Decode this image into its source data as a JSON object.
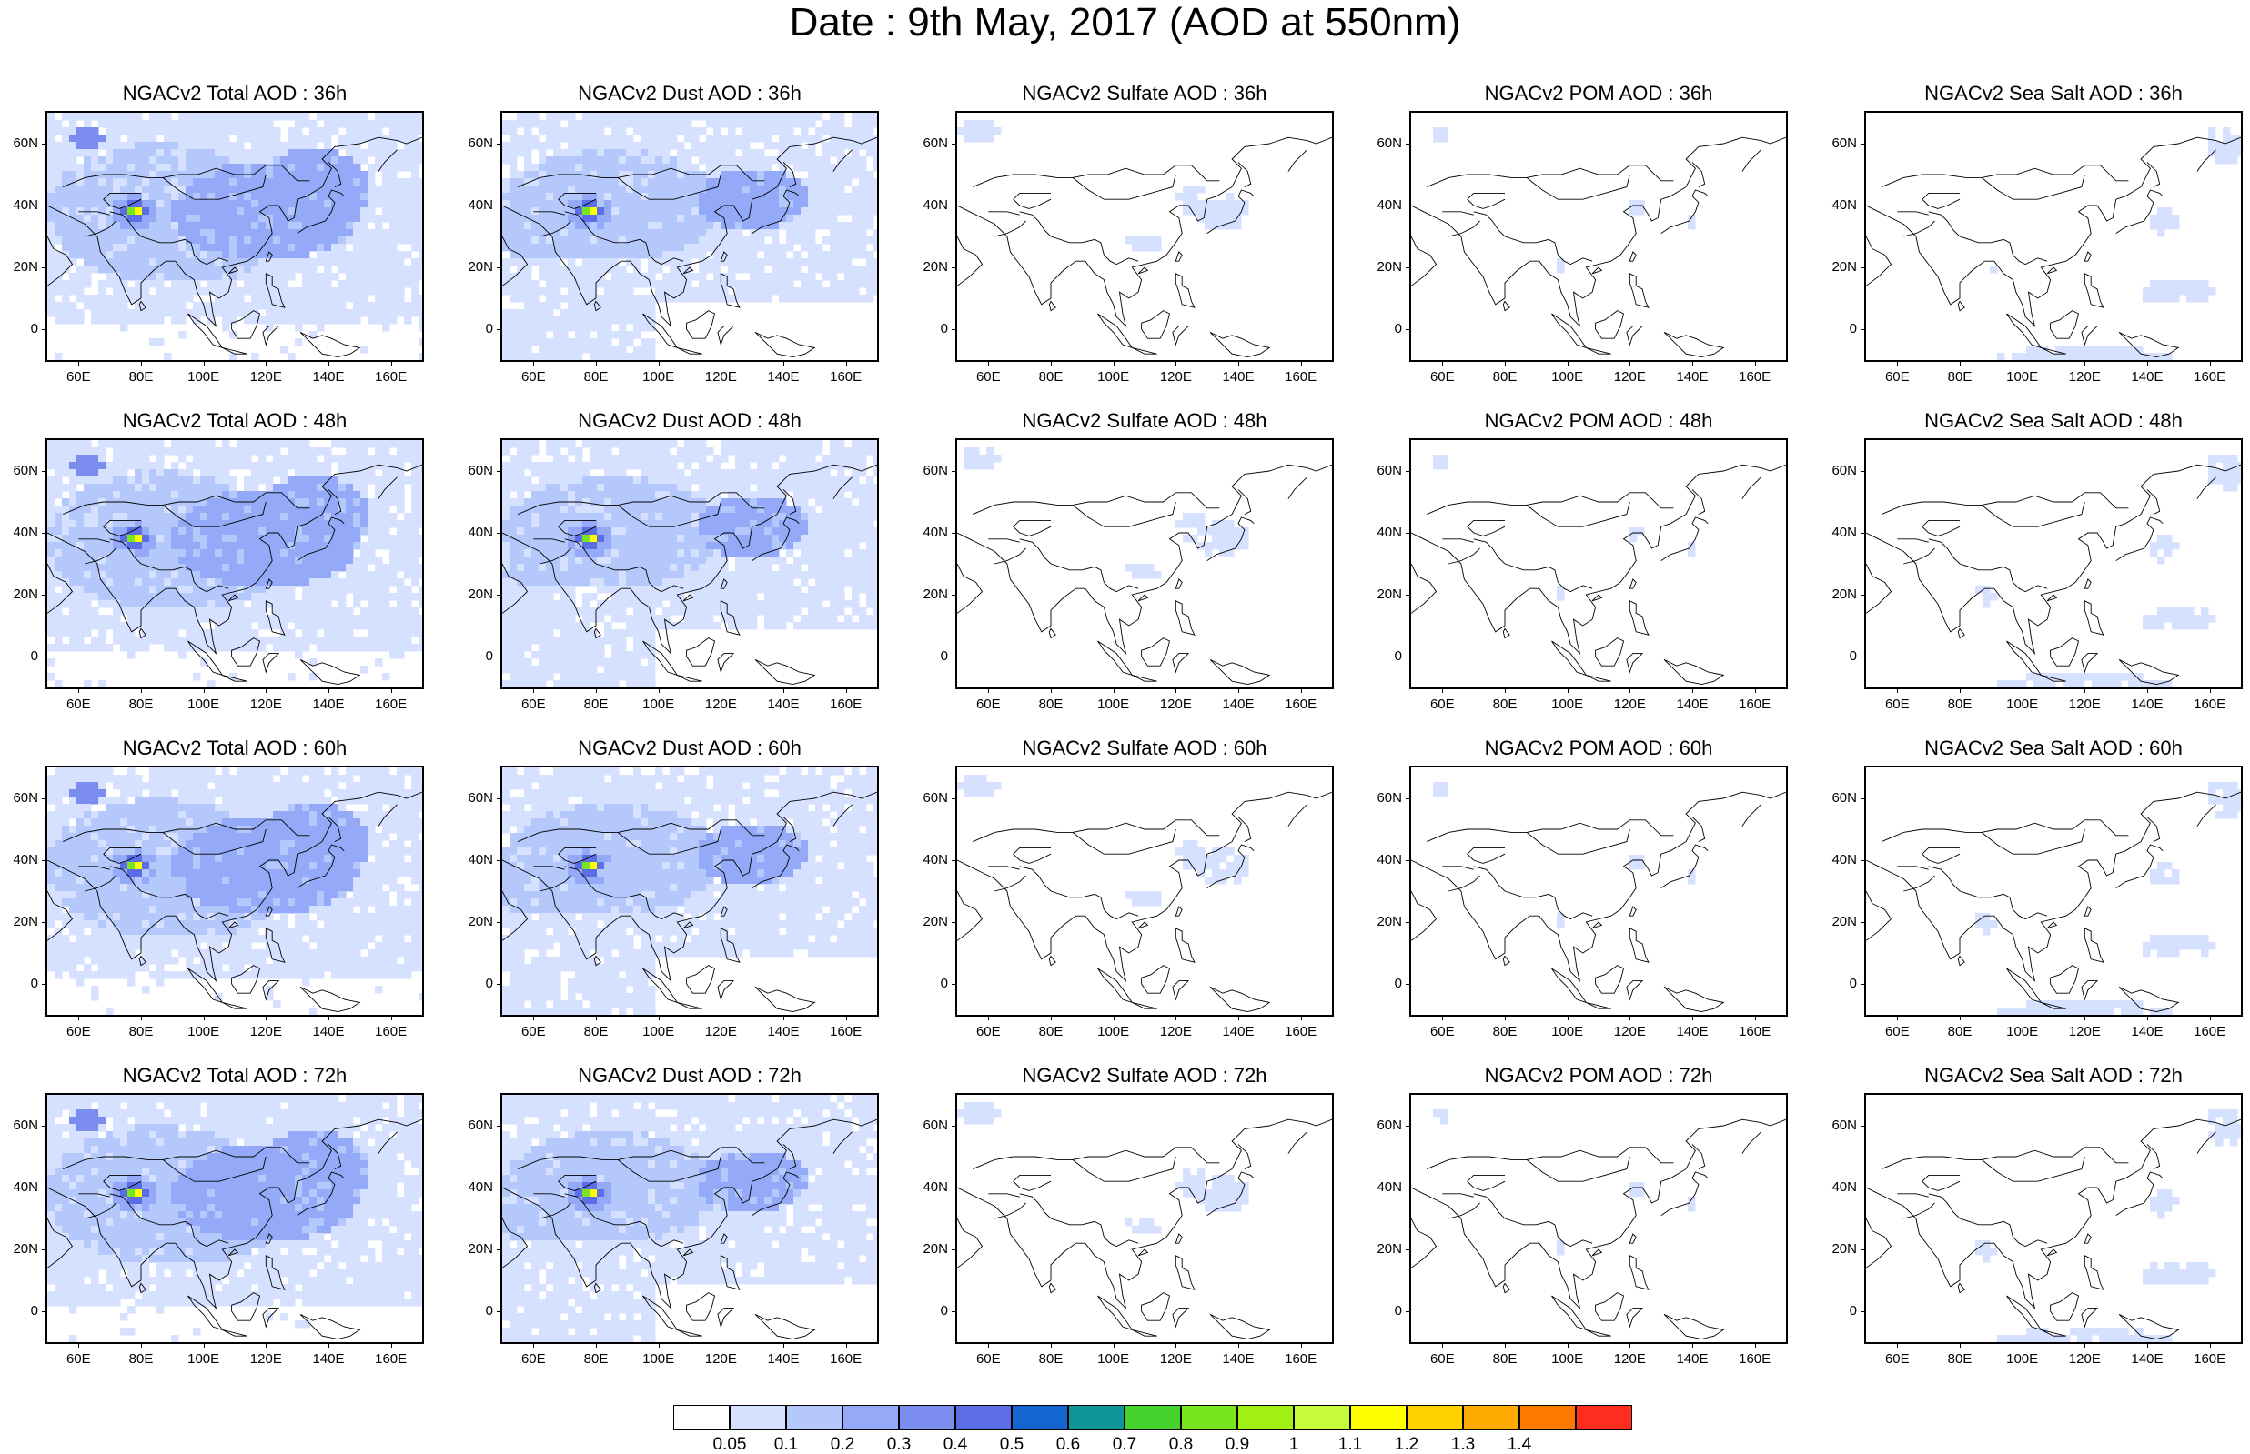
{
  "title": "Date : 9th May, 2017 (AOD at 550nm)",
  "axes": {
    "lon_labels": [
      "60E",
      "80E",
      "100E",
      "120E",
      "140E",
      "160E"
    ],
    "lat_labels": [
      "60N",
      "40N",
      "20N",
      "0"
    ],
    "lon_range": [
      50,
      170
    ],
    "lat_range": [
      -10,
      70
    ]
  },
  "panels": [
    {
      "title": "NGACv2 Total AOD : 36h",
      "species": "total",
      "hour": 36
    },
    {
      "title": "NGACv2 Dust AOD : 36h",
      "species": "dust",
      "hour": 36
    },
    {
      "title": "NGACv2 Sulfate AOD : 36h",
      "species": "sulfate",
      "hour": 36
    },
    {
      "title": "NGACv2 POM AOD : 36h",
      "species": "pom",
      "hour": 36
    },
    {
      "title": "NGACv2 Sea Salt AOD : 36h",
      "species": "seasalt",
      "hour": 36
    },
    {
      "title": "NGACv2 Total AOD : 48h",
      "species": "total",
      "hour": 48
    },
    {
      "title": "NGACv2 Dust AOD : 48h",
      "species": "dust",
      "hour": 48
    },
    {
      "title": "NGACv2 Sulfate AOD : 48h",
      "species": "sulfate",
      "hour": 48
    },
    {
      "title": "NGACv2 POM AOD : 48h",
      "species": "pom",
      "hour": 48
    },
    {
      "title": "NGACv2 Sea Salt AOD : 48h",
      "species": "seasalt",
      "hour": 48
    },
    {
      "title": "NGACv2 Total AOD : 60h",
      "species": "total",
      "hour": 60
    },
    {
      "title": "NGACv2 Dust AOD : 60h",
      "species": "dust",
      "hour": 60
    },
    {
      "title": "NGACv2 Sulfate AOD : 60h",
      "species": "sulfate",
      "hour": 60
    },
    {
      "title": "NGACv2 POM AOD : 60h",
      "species": "pom",
      "hour": 60
    },
    {
      "title": "NGACv2 Sea Salt AOD : 60h",
      "species": "seasalt",
      "hour": 60
    },
    {
      "title": "NGACv2 Total AOD : 72h",
      "species": "total",
      "hour": 72
    },
    {
      "title": "NGACv2 Dust AOD : 72h",
      "species": "dust",
      "hour": 72
    },
    {
      "title": "NGACv2 Sulfate AOD : 72h",
      "species": "sulfate",
      "hour": 72
    },
    {
      "title": "NGACv2 POM AOD : 72h",
      "species": "pom",
      "hour": 72
    },
    {
      "title": "NGACv2 Sea Salt  AOD : 72h",
      "species": "seasalt",
      "hour": 72
    }
  ],
  "colorbar": {
    "labels": [
      "0.05",
      "0.1",
      "0.2",
      "0.3",
      "0.4",
      "0.5",
      "0.6",
      "0.7",
      "0.8",
      "0.9",
      "1",
      "1.1",
      "1.2",
      "1.3",
      "1.4"
    ],
    "colors": [
      "#ffffff",
      "#d6e1ff",
      "#b4c8fc",
      "#94aaf8",
      "#7b8ef0",
      "#5c6ee6",
      "#1464d2",
      "#0f9696",
      "#46d22d",
      "#78e61e",
      "#a0f014",
      "#c8fa3c",
      "#ffff00",
      "#ffd200",
      "#ffaa00",
      "#ff7800",
      "#ff2d1e"
    ]
  }
}
